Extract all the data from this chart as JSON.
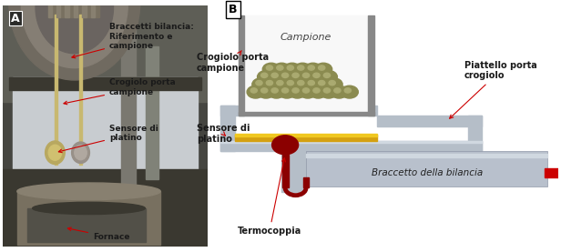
{
  "fig_width": 6.16,
  "fig_height": 2.77,
  "dpi": 100,
  "bg_color": "#ffffff",
  "panel_A_label": "A",
  "panel_B_label": "B",
  "label_braccetti": "Braccetti bilancia:\nRiferimento e\ncampione",
  "label_crogiolo": "Crogiolo porta\ncampione",
  "label_sensore": "Sensore di\nplatino",
  "label_fornace": "Fornace",
  "label_campione": "Campione",
  "label_piattello": "Piattello porta\ncrogiolo",
  "label_braccetto_della": "Braccetto della bilancia",
  "label_termocoppia": "Termocoppia",
  "arrow_color": "#cc0000",
  "text_color": "#1a1a1a",
  "label_fontsize": 6.5,
  "label_fontsize_diagram": 7.0,
  "gray_plate": "#b5bec8",
  "gray_plate_dark": "#8a9098",
  "gray_plate_light": "#d0d8e0",
  "gold_color": "#d4a010",
  "thermocouple_color": "#8b0000",
  "arm_color": "#b8c0cc",
  "red_line_color": "#cc0000",
  "sample_color": "#8b8b50",
  "sample_highlight": "#aaaa70",
  "cup_bg": "#f8f8f8",
  "cup_border": "#888888"
}
